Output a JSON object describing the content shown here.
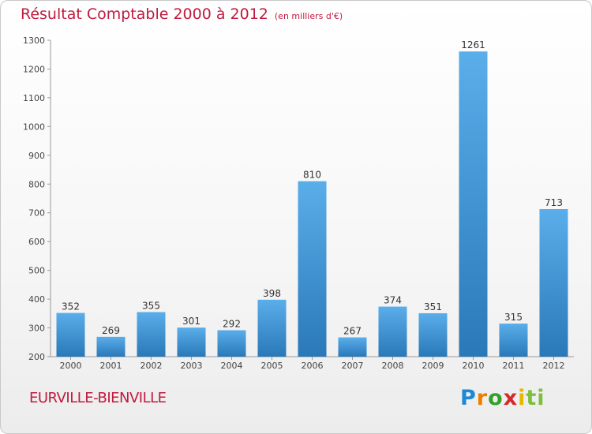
{
  "header": {
    "title": "Résultat Comptable 2000 à 2012",
    "subtitle": "(en milliers d'€)"
  },
  "footer": {
    "location": "EURVILLE-BIENVILLE",
    "brand": "Proxiti",
    "brand_parts": [
      "P",
      "r",
      "o",
      "x",
      "i",
      "ti"
    ]
  },
  "colors": {
    "title": "#c01a3f",
    "bar_top": "#5aaeea",
    "bar_bottom": "#2a78b8"
  },
  "chart_data": {
    "type": "bar",
    "title": "Résultat Comptable 2000 à 2012",
    "xlabel": "",
    "ylabel": "",
    "categories": [
      "2000",
      "2001",
      "2002",
      "2003",
      "2004",
      "2005",
      "2006",
      "2007",
      "2008",
      "2009",
      "2010",
      "2011",
      "2012"
    ],
    "values": [
      352,
      269,
      355,
      301,
      292,
      398,
      810,
      267,
      374,
      351,
      1261,
      315,
      713
    ],
    "ylim": [
      200,
      1300
    ],
    "yticks": [
      200,
      300,
      400,
      500,
      600,
      700,
      800,
      900,
      1000,
      1100,
      1200,
      1300
    ],
    "grid": false
  }
}
